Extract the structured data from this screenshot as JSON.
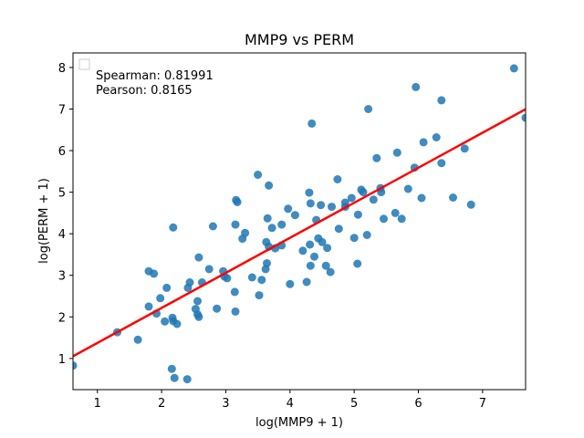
{
  "chart_data": {
    "type": "scatter",
    "title": "MMP9 vs PERM",
    "xlabel": "log(MMP9 + 1)",
    "ylabel": "log(PERM + 1)",
    "xlim": [
      0.62,
      7.67
    ],
    "ylim": [
      0.25,
      8.35
    ],
    "xticks": [
      "1",
      "2",
      "3",
      "4",
      "5",
      "6",
      "7"
    ],
    "yticks": [
      "1",
      "2",
      "3",
      "4",
      "5",
      "6",
      "7",
      "8"
    ],
    "grid": false,
    "legend": {
      "placement": "top-left",
      "entries": [
        "Spearman: 0.81991",
        "Pearson: 0.8165"
      ]
    },
    "point_color": "#1f77b4",
    "line_color": "#ff0000",
    "fit_line": {
      "slope": 0.843,
      "intercept": 0.53
    },
    "points": [
      [
        0.62,
        0.83
      ],
      [
        1.31,
        1.63
      ],
      [
        1.63,
        1.45
      ],
      [
        1.8,
        3.1
      ],
      [
        1.8,
        2.25
      ],
      [
        1.88,
        3.04
      ],
      [
        1.92,
        2.08
      ],
      [
        1.98,
        2.45
      ],
      [
        2.05,
        1.89
      ],
      [
        2.08,
        2.7
      ],
      [
        2.16,
        0.75
      ],
      [
        2.17,
        1.98
      ],
      [
        2.18,
        1.9
      ],
      [
        2.18,
        4.15
      ],
      [
        2.2,
        0.53
      ],
      [
        2.24,
        1.83
      ],
      [
        2.4,
        0.5
      ],
      [
        2.41,
        2.7
      ],
      [
        2.44,
        2.83
      ],
      [
        2.53,
        2.19
      ],
      [
        2.56,
        2.38
      ],
      [
        2.56,
        2.06
      ],
      [
        2.58,
        2.0
      ],
      [
        2.58,
        3.43
      ],
      [
        2.63,
        2.83
      ],
      [
        2.74,
        3.15
      ],
      [
        2.8,
        4.18
      ],
      [
        2.86,
        2.2
      ],
      [
        2.96,
        3.1
      ],
      [
        2.98,
        2.97
      ],
      [
        3.02,
        2.93
      ],
      [
        3.14,
        2.6
      ],
      [
        3.15,
        2.13
      ],
      [
        3.15,
        4.22
      ],
      [
        3.16,
        4.81
      ],
      [
        3.18,
        4.76
      ],
      [
        3.26,
        3.88
      ],
      [
        3.3,
        4.02
      ],
      [
        3.41,
        2.95
      ],
      [
        3.5,
        5.42
      ],
      [
        3.52,
        2.52
      ],
      [
        3.56,
        2.89
      ],
      [
        3.62,
        3.15
      ],
      [
        3.63,
        3.8
      ],
      [
        3.64,
        3.29
      ],
      [
        3.65,
        4.37
      ],
      [
        3.67,
        5.16
      ],
      [
        3.67,
        3.69
      ],
      [
        3.72,
        4.14
      ],
      [
        3.77,
        3.65
      ],
      [
        3.87,
        3.72
      ],
      [
        3.87,
        4.22
      ],
      [
        3.97,
        4.6
      ],
      [
        4.0,
        2.79
      ],
      [
        4.08,
        4.45
      ],
      [
        4.2,
        3.59
      ],
      [
        4.26,
        2.84
      ],
      [
        4.3,
        4.99
      ],
      [
        4.31,
        3.74
      ],
      [
        4.32,
        4.73
      ],
      [
        4.32,
        3.23
      ],
      [
        4.34,
        6.65
      ],
      [
        4.38,
        3.45
      ],
      [
        4.41,
        4.33
      ],
      [
        4.44,
        3.89
      ],
      [
        4.48,
        4.69
      ],
      [
        4.5,
        3.8
      ],
      [
        4.56,
        3.23
      ],
      [
        4.58,
        3.66
      ],
      [
        4.63,
        3.08
      ],
      [
        4.65,
        4.65
      ],
      [
        4.74,
        5.31
      ],
      [
        4.76,
        4.12
      ],
      [
        4.86,
        4.75
      ],
      [
        4.86,
        4.65
      ],
      [
        4.96,
        4.86
      ],
      [
        5.0,
        3.9
      ],
      [
        5.05,
        3.28
      ],
      [
        5.06,
        4.46
      ],
      [
        5.11,
        5.06
      ],
      [
        5.14,
        5.0
      ],
      [
        5.2,
        3.97
      ],
      [
        5.22,
        7.0
      ],
      [
        5.3,
        4.82
      ],
      [
        5.35,
        5.82
      ],
      [
        5.41,
        5.1
      ],
      [
        5.42,
        5.0
      ],
      [
        5.46,
        4.36
      ],
      [
        5.64,
        4.5
      ],
      [
        5.67,
        5.95
      ],
      [
        5.74,
        4.36
      ],
      [
        5.84,
        5.08
      ],
      [
        5.94,
        5.59
      ],
      [
        5.96,
        7.53
      ],
      [
        6.05,
        4.86
      ],
      [
        6.08,
        6.2
      ],
      [
        6.28,
        6.32
      ],
      [
        6.36,
        5.7
      ],
      [
        6.36,
        7.21
      ],
      [
        6.54,
        4.87
      ],
      [
        6.72,
        6.05
      ],
      [
        6.82,
        4.7
      ],
      [
        7.49,
        7.98
      ],
      [
        7.67,
        6.79
      ]
    ]
  }
}
